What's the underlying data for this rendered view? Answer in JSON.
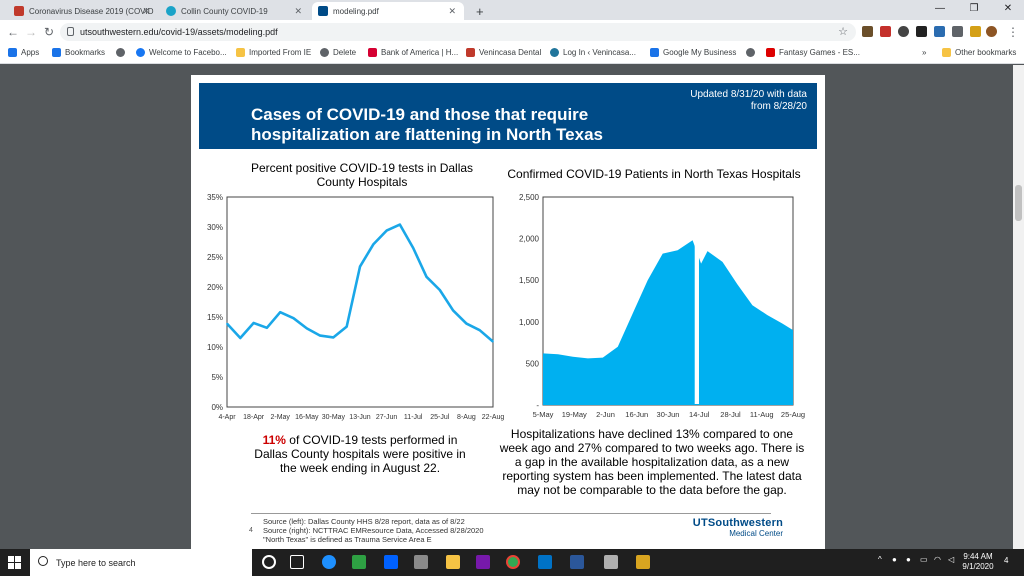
{
  "browser": {
    "tabs": [
      {
        "title": "Coronavirus Disease 2019 (COVID",
        "color": "#c0392b"
      },
      {
        "title": "Collin County COVID-19",
        "color": "#1aa3c8"
      },
      {
        "title": "modeling.pdf",
        "color": "#004b87"
      }
    ],
    "new_tab": "+",
    "window_controls": {
      "minimize": "—",
      "restore": "❐",
      "close": "✕"
    },
    "url": "utsouthwestern.edu/covid-19/assets/modeling.pdf",
    "nav": {
      "back": "←",
      "forward": "→",
      "reload": "↻"
    },
    "bookmarks": [
      {
        "label": "Apps",
        "color": "#1a73e8"
      },
      {
        "label": "Bookmarks",
        "color": "#1a73e8"
      },
      {
        "label": "",
        "color": "#5f6368"
      },
      {
        "label": "Welcome to Facebo...",
        "color": "#1877f2"
      },
      {
        "label": "Imported From IE",
        "color": "#f6c344"
      },
      {
        "label": "Delete",
        "color": "#5f6368"
      },
      {
        "label": "Bank of America | H...",
        "color": "#d50032"
      },
      {
        "label": "Venincasa Dental",
        "color": "#c0392b"
      },
      {
        "label": "Log In ‹ Venincasa...",
        "color": "#21759b"
      },
      {
        "label": "Google My Business",
        "color": "#1a73e8"
      },
      {
        "label": "",
        "color": "#5f6368"
      },
      {
        "label": "Fantasy Games - ES...",
        "color": "#d00"
      }
    ],
    "more_bookmarks": "»",
    "other_bookmarks": "Other bookmarks"
  },
  "slide": {
    "title": "Cases of COVID-19 and those that require hospitalization are flattening in North Texas",
    "updated": "Updated 8/31/20 with data from 8/28/20",
    "left_chart_title": "Percent positive COVID-19 tests in Dallas County Hospitals",
    "right_chart_title": "Confirmed COVID-19 Patients in North Texas Hospitals",
    "left_caption_highlight": "11%",
    "left_caption_rest": " of COVID-19 tests performed in Dallas County hospitals were positive in the week ending in August 22.",
    "right_caption": "Hospitalizations have declined 13% compared to one week ago and 27% compared to two weeks ago. There is a gap in the available hospitalization data, as a new reporting system has been implemented. The latest data may not be comparable to the data before the gap.",
    "page_number": "4",
    "sources": [
      "Source (left): Dallas County HHS 8/28 report, data as of 8/22",
      "Source (right): NCTTRAC EMResource Data, Accessed 8/28/2020",
      "\"North Texas\" is defined as Trauma Service Area E"
    ],
    "logo_main": "UTSouthwestern",
    "logo_sub": "Medical Center",
    "accent": "#004b87",
    "highlight_color": "#cc0000"
  },
  "chart_data": [
    {
      "type": "line",
      "title": "Percent positive COVID-19 tests in Dallas County Hospitals",
      "categories": [
        "4-Apr",
        "11-Apr",
        "18-Apr",
        "25-Apr",
        "2-May",
        "9-May",
        "16-May",
        "23-May",
        "30-May",
        "6-Jun",
        "13-Jun",
        "20-Jun",
        "27-Jun",
        "4-Jul",
        "11-Jul",
        "18-Jul",
        "25-Jul",
        "1-Aug",
        "8-Aug",
        "15-Aug",
        "22-Aug"
      ],
      "tick_labels": [
        "4-Apr",
        "18-Apr",
        "2-May",
        "16-May",
        "30-May",
        "13-Jun",
        "27-Jun",
        "11-Jul",
        "25-Jul",
        "8-Aug",
        "22-Aug"
      ],
      "values": [
        13.9,
        11.5,
        14.0,
        13.2,
        15.8,
        14.8,
        13.1,
        11.9,
        11.6,
        13.4,
        23.4,
        27.1,
        29.4,
        30.4,
        26.5,
        21.7,
        19.5,
        16.1,
        13.9,
        12.8,
        10.9
      ],
      "ylim": [
        0,
        35
      ],
      "yticks": [
        "0%",
        "5%",
        "10%",
        "15%",
        "20%",
        "25%",
        "30%",
        "35%"
      ],
      "color": "#1aa7e8"
    },
    {
      "type": "area",
      "title": "Confirmed COVID-19 Patients in North Texas Hospitals",
      "tick_labels": [
        "5-May",
        "19-May",
        "2-Jun",
        "16-Jun",
        "30-Jun",
        "14-Jul",
        "28-Jul",
        "11-Aug",
        "25-Aug"
      ],
      "ylim": [
        0,
        2500
      ],
      "yticks": [
        "-",
        "500",
        "1,000",
        "1,500",
        "2,000",
        "2,500"
      ],
      "x_days": [
        0,
        7,
        14,
        21,
        28,
        35,
        42,
        49,
        56,
        63,
        70,
        74,
        77,
        84,
        91,
        98,
        105,
        112,
        117
      ],
      "values": [
        620,
        610,
        580,
        560,
        570,
        700,
        1100,
        1500,
        1820,
        1860,
        1980,
        1700,
        1850,
        1720,
        1450,
        1200,
        1080,
        980,
        900
      ],
      "gap_start_day": 71,
      "gap_end_day": 73,
      "color": "#00b0f0"
    }
  ],
  "taskbar": {
    "search_placeholder": "Type here to search",
    "time": "9:44 AM",
    "date": "9/1/2020",
    "notifications": "4"
  }
}
